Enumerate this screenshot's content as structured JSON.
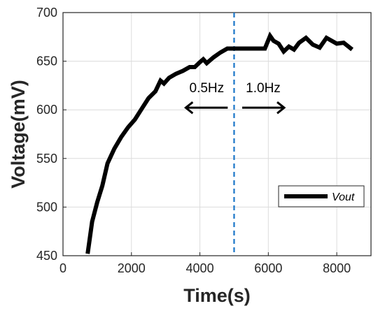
{
  "chart_data": {
    "type": "line",
    "title": "",
    "xlabel": "Time(s)",
    "ylabel": "Voltage(mV)",
    "xlim": [
      0,
      9000
    ],
    "ylim": [
      450,
      700
    ],
    "xticks": [
      0,
      2000,
      4000,
      6000,
      8000
    ],
    "yticks": [
      450,
      500,
      550,
      600,
      650,
      700
    ],
    "grid": true,
    "legend_position": "bottom-right",
    "series": [
      {
        "name": "Vout",
        "color": "#000000",
        "x": [
          720,
          850,
          1000,
          1150,
          1300,
          1500,
          1700,
          1900,
          2100,
          2300,
          2500,
          2700,
          2850,
          2950,
          3100,
          3300,
          3500,
          3700,
          3850,
          4000,
          4100,
          4200,
          4400,
          4600,
          4800,
          4950,
          5100,
          5300,
          5600,
          5900,
          6050,
          6150,
          6300,
          6450,
          6600,
          6750,
          6900,
          7100,
          7300,
          7500,
          7700,
          7850,
          8000,
          8200,
          8450
        ],
        "y": [
          452,
          485,
          505,
          522,
          545,
          560,
          572,
          582,
          590,
          601,
          612,
          619,
          630,
          627,
          633,
          637,
          640,
          644,
          644,
          649,
          652,
          648,
          654,
          659,
          663,
          663,
          663,
          663,
          663,
          663,
          676,
          671,
          668,
          660,
          665,
          662,
          669,
          674,
          667,
          664,
          674,
          671,
          668,
          669,
          662
        ]
      }
    ],
    "vline": {
      "x": 5000,
      "color": "#1a75c8"
    },
    "annotations": [
      {
        "text": "0.5Hz",
        "x": 4200,
        "y": 618,
        "arrow_direction": "left"
      },
      {
        "text": "1.0Hz",
        "x": 5850,
        "y": 618,
        "arrow_direction": "right"
      }
    ]
  }
}
